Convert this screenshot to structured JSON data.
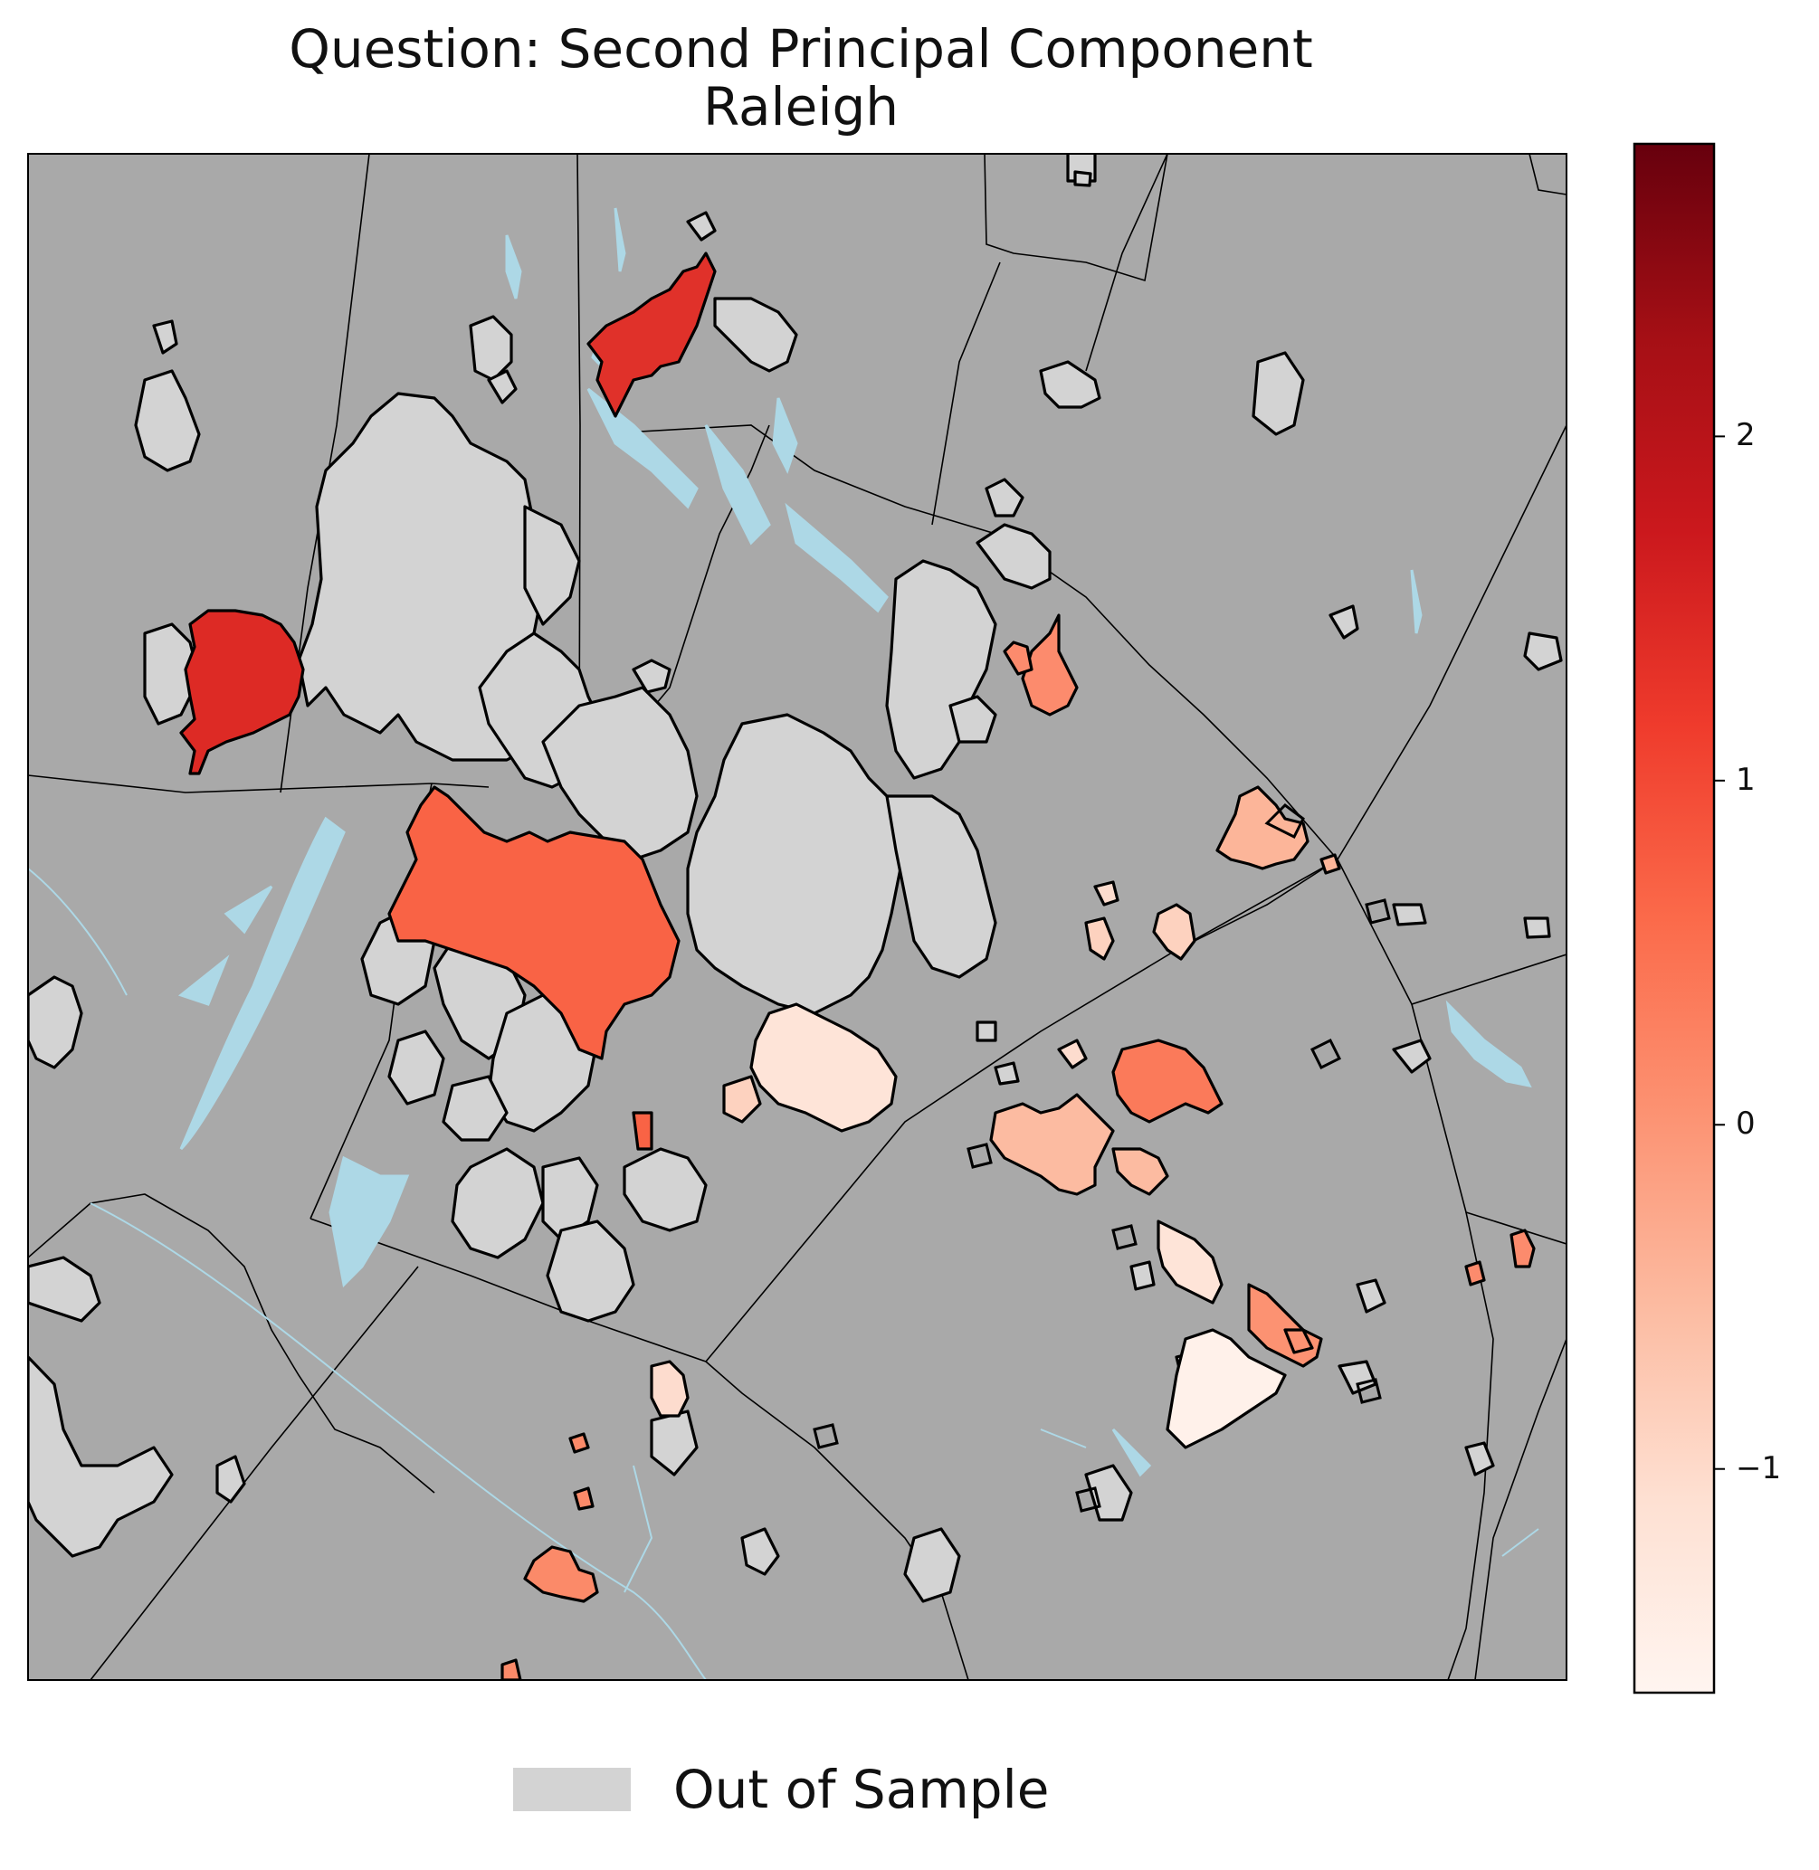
{
  "title_line1": "Question: Second Principal Component",
  "title_line2": "Raleigh",
  "legend": {
    "label": "Out of Sample",
    "color": "#d3d3d3"
  },
  "colorbar": {
    "colormap": "Reds",
    "min": -1.65,
    "max": 2.85,
    "ticks": [
      {
        "value": 2,
        "label": "2"
      },
      {
        "value": 1,
        "label": "1"
      },
      {
        "value": 0,
        "label": "0"
      },
      {
        "value": -1,
        "label": "−1"
      }
    ]
  },
  "colors": {
    "background": "#a9a9a9",
    "water": "#add8e6",
    "out_of_sample": "#d3d3d3",
    "boundary": "#000000"
  }
}
